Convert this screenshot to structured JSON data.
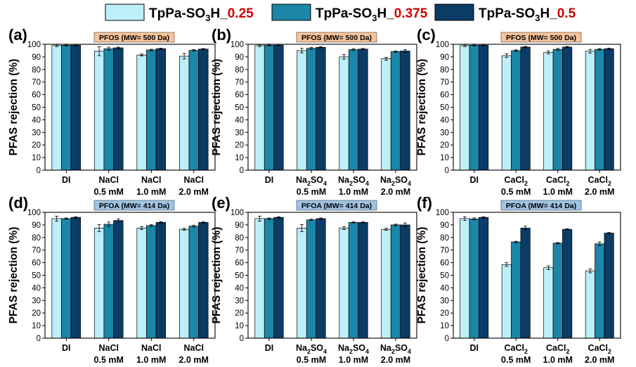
{
  "colors": {
    "series": [
      "#bdeff9",
      "#1b86a8",
      "#0b3c66"
    ],
    "legend_red": "#d00000",
    "pfos_box": "#f7c39a",
    "pfoa_box": "#9fc4e6"
  },
  "legend": [
    {
      "name": "TpPa-SO3H_0.25",
      "prefix": "TpPa-SO",
      "sub": "3",
      "mid": "H_",
      "suffix": "0.25"
    },
    {
      "name": "TpPa-SO3H_0.375",
      "prefix": "TpPa-SO",
      "sub": "3",
      "mid": "H_",
      "suffix": "0.375"
    },
    {
      "name": "TpPa-SO3H_0.5",
      "prefix": "TpPa-SO",
      "sub": "3",
      "mid": "H_",
      "suffix": "0.5"
    }
  ],
  "chart_data": [
    {
      "panel": "(a)",
      "type": "bar",
      "box_label": "PFOS (MW= 500 Da)",
      "box": "pfos",
      "ylabel": "PFAS rejection (%)",
      "ylim": [
        0,
        100
      ],
      "yticks": [
        "0",
        "10",
        "20",
        "30",
        "40",
        "50",
        "60",
        "70",
        "80",
        "90",
        "100"
      ],
      "categories": [
        {
          "line1": "DI",
          "line2": ""
        },
        {
          "line1": "NaCl",
          "line2": "0.5 mM"
        },
        {
          "line1": "NaCl",
          "line2": "1.0 mM"
        },
        {
          "line1": "NaCl",
          "line2": "2.0 mM"
        }
      ],
      "series": [
        {
          "name": "TpPa-SO3H_0.25",
          "values": [
            99,
            94.5,
            91.5,
            90.5
          ],
          "errors": [
            0.8,
            3.5,
            0.8,
            2.2
          ]
        },
        {
          "name": "TpPa-SO3H_0.375",
          "values": [
            99.2,
            96.5,
            95.5,
            95.2
          ],
          "errors": [
            0.5,
            1.2,
            0.6,
            0.6
          ]
        },
        {
          "name": "TpPa-SO3H_0.5",
          "values": [
            99.3,
            97.2,
            96.5,
            96.2
          ],
          "errors": [
            0.5,
            0.6,
            0.5,
            0.4
          ]
        }
      ]
    },
    {
      "panel": "(b)",
      "type": "bar",
      "box_label": "PFOS (MW= 500 Da)",
      "box": "pfos",
      "ylabel": "PFAS rejection (%)",
      "ylim": [
        0,
        100
      ],
      "yticks": [
        "0",
        "10",
        "20",
        "30",
        "40",
        "50",
        "60",
        "70",
        "80",
        "90",
        "100"
      ],
      "categories": [
        {
          "line1": "DI",
          "line2": ""
        },
        {
          "line1": "Na2SO4",
          "line2": "0.5 mM",
          "chem": [
            "Na",
            "2",
            "SO",
            "4"
          ]
        },
        {
          "line1": "Na2SO4",
          "line2": "1.0 mM",
          "chem": [
            "Na",
            "2",
            "SO",
            "4"
          ]
        },
        {
          "line1": "Na2SO4",
          "line2": "2.0 mM",
          "chem": [
            "Na",
            "2",
            "SO",
            "4"
          ]
        }
      ],
      "series": [
        {
          "name": "TpPa-SO3H_0.25",
          "values": [
            99,
            95,
            90,
            88.5
          ],
          "errors": [
            0.8,
            1.8,
            1.8,
            1.2
          ]
        },
        {
          "name": "TpPa-SO3H_0.375",
          "values": [
            99.2,
            96.8,
            95.8,
            94.2
          ],
          "errors": [
            0.5,
            0.8,
            0.8,
            0.5
          ]
        },
        {
          "name": "TpPa-SO3H_0.5",
          "values": [
            99.3,
            97.6,
            96.2,
            94.7
          ],
          "errors": [
            0.5,
            0.5,
            0.5,
            1.2
          ]
        }
      ]
    },
    {
      "panel": "(c)",
      "type": "bar",
      "box_label": "PFOS (MW= 500 Da)",
      "box": "pfos",
      "ylabel": "PFAS rejection (%)",
      "ylim": [
        0,
        100
      ],
      "yticks": [
        "0",
        "10",
        "20",
        "30",
        "40",
        "50",
        "60",
        "70",
        "80",
        "90",
        "100"
      ],
      "categories": [
        {
          "line1": "DI",
          "line2": ""
        },
        {
          "line1": "CaCl2",
          "line2": "0.5 mM",
          "chem": [
            "CaCl",
            "2",
            "",
            ""
          ]
        },
        {
          "line1": "CaCl2",
          "line2": "1.0 mM",
          "chem": [
            "CaCl",
            "2",
            "",
            ""
          ]
        },
        {
          "line1": "CaCl2",
          "line2": "2.0 mM",
          "chem": [
            "CaCl",
            "2",
            "",
            ""
          ]
        }
      ],
      "series": [
        {
          "name": "TpPa-SO3H_0.25",
          "values": [
            99,
            91,
            93.5,
            94.5
          ],
          "errors": [
            0.8,
            1.5,
            1.2,
            1.5
          ]
        },
        {
          "name": "TpPa-SO3H_0.375",
          "values": [
            99.2,
            95,
            96,
            96
          ],
          "errors": [
            0.5,
            0.6,
            0.8,
            0.6
          ]
        },
        {
          "name": "TpPa-SO3H_0.5",
          "values": [
            99.3,
            97.8,
            97.8,
            96.5
          ],
          "errors": [
            0.5,
            0.5,
            0.5,
            0.5
          ]
        }
      ]
    },
    {
      "panel": "(d)",
      "type": "bar",
      "box_label": "PFOA (MW= 414 Da)",
      "box": "pfoa",
      "ylabel": "PFAS rejection (%)",
      "ylim": [
        0,
        100
      ],
      "yticks": [
        "0",
        "10",
        "20",
        "30",
        "40",
        "50",
        "60",
        "70",
        "80",
        "90",
        "100"
      ],
      "categories": [
        {
          "line1": "DI",
          "line2": ""
        },
        {
          "line1": "NaCl",
          "line2": "0.5 mM"
        },
        {
          "line1": "NaCl",
          "line2": "1.0 mM"
        },
        {
          "line1": "NaCl",
          "line2": "2.0 mM"
        }
      ],
      "series": [
        {
          "name": "TpPa-SO3H_0.25",
          "values": [
            95,
            87.5,
            87.5,
            86.5
          ],
          "errors": [
            2,
            2.8,
            1.2,
            0.8
          ]
        },
        {
          "name": "TpPa-SO3H_0.375",
          "values": [
            95,
            90.5,
            89.5,
            89
          ],
          "errors": [
            0.5,
            1.8,
            0.8,
            0.8
          ]
        },
        {
          "name": "TpPa-SO3H_0.5",
          "values": [
            96,
            93.5,
            92,
            92
          ],
          "errors": [
            0.5,
            1.2,
            0.6,
            0.6
          ]
        }
      ]
    },
    {
      "panel": "(e)",
      "type": "bar",
      "box_label": "PFOA (MW= 414 Da)",
      "box": "pfoa",
      "ylabel": "PFAS rejection (%)",
      "ylim": [
        0,
        100
      ],
      "yticks": [
        "0",
        "10",
        "20",
        "30",
        "40",
        "50",
        "60",
        "70",
        "80",
        "90",
        "100"
      ],
      "categories": [
        {
          "line1": "DI",
          "line2": ""
        },
        {
          "line1": "Na2SO4",
          "line2": "0.5 mM",
          "chem": [
            "Na",
            "2",
            "SO",
            "4"
          ]
        },
        {
          "line1": "Na2SO4",
          "line2": "1.0 mM",
          "chem": [
            "Na",
            "2",
            "SO",
            "4"
          ]
        },
        {
          "line1": "Na2SO4",
          "line2": "2.0 mM",
          "chem": [
            "Na",
            "2",
            "SO",
            "4"
          ]
        }
      ],
      "series": [
        {
          "name": "TpPa-SO3H_0.25",
          "values": [
            95,
            87.5,
            87.5,
            86.5
          ],
          "errors": [
            2,
            2.8,
            1.2,
            0.8
          ]
        },
        {
          "name": "TpPa-SO3H_0.375",
          "values": [
            95,
            94,
            92,
            90
          ],
          "errors": [
            0.5,
            0.6,
            0.5,
            0.6
          ]
        },
        {
          "name": "TpPa-SO3H_0.5",
          "values": [
            96,
            95,
            92,
            90
          ],
          "errors": [
            0.5,
            0.5,
            0.5,
            1.5
          ]
        }
      ]
    },
    {
      "panel": "(f)",
      "type": "bar",
      "box_label": "PFOA (MW= 414 Da)",
      "box": "pfoa",
      "ylabel": "PFAS rejection (%)",
      "ylim": [
        0,
        100
      ],
      "yticks": [
        "0",
        "10",
        "20",
        "30",
        "40",
        "50",
        "60",
        "70",
        "80",
        "90",
        "100"
      ],
      "categories": [
        {
          "line1": "DI",
          "line2": ""
        },
        {
          "line1": "CaCl2",
          "line2": "0.5 mM",
          "chem": [
            "CaCl",
            "2",
            "",
            ""
          ]
        },
        {
          "line1": "CaCl2",
          "line2": "1.0 mM",
          "chem": [
            "CaCl",
            "2",
            "",
            ""
          ]
        },
        {
          "line1": "CaCl2",
          "line2": "2.0 mM",
          "chem": [
            "CaCl",
            "2",
            "",
            ""
          ]
        }
      ],
      "series": [
        {
          "name": "TpPa-SO3H_0.25",
          "values": [
            95,
            58.5,
            56,
            53.5
          ],
          "errors": [
            1.5,
            1.5,
            1.5,
            1.5
          ]
        },
        {
          "name": "TpPa-SO3H_0.375",
          "values": [
            94.8,
            76.5,
            75.5,
            75
          ],
          "errors": [
            0.8,
            0.5,
            0.5,
            1.5
          ]
        },
        {
          "name": "TpPa-SO3H_0.5",
          "values": [
            96,
            87.5,
            86.5,
            83.5
          ],
          "errors": [
            0.5,
            1.5,
            0.5,
            0.5
          ]
        }
      ]
    }
  ]
}
